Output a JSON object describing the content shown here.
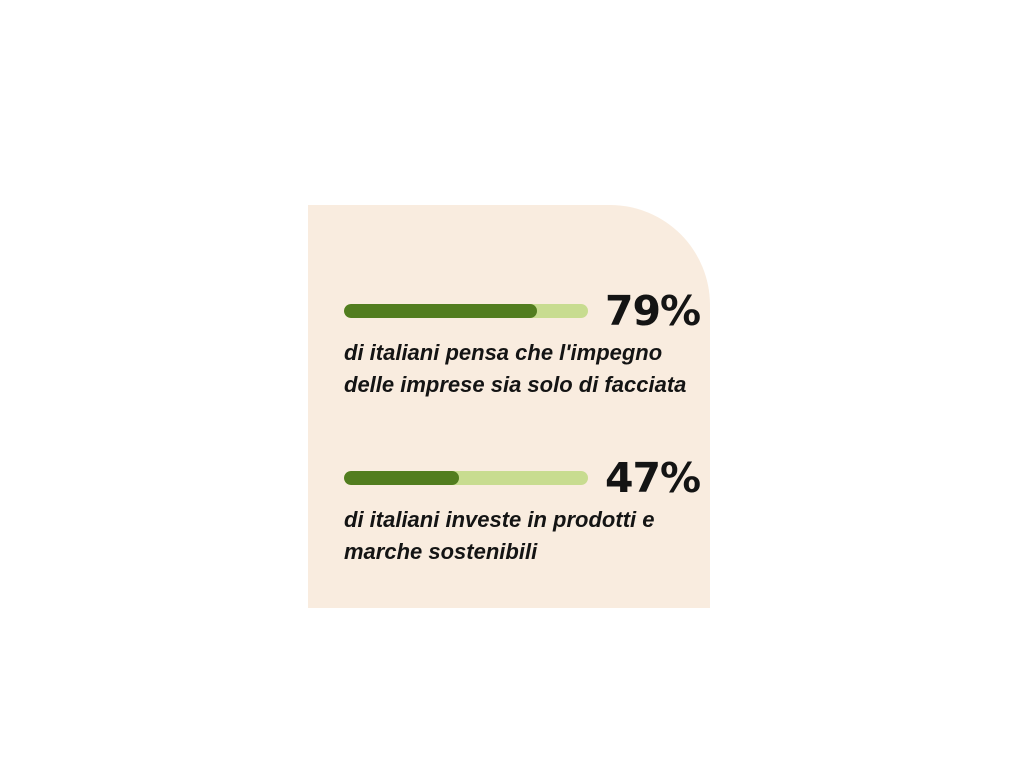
{
  "colors": {
    "page_bg": "#ffffff",
    "panel_bg": "#f9ecdf",
    "bar_fill": "#527d1f",
    "bar_track": "#c8dc90",
    "text": "#141414"
  },
  "stats": [
    {
      "percent_label": "79%",
      "value": 79,
      "lines": [
        "di italiani pensa che l'impegno",
        "delle imprese sia solo di facciata"
      ]
    },
    {
      "percent_label": "47%",
      "value": 47,
      "lines": [
        "di italiani investe in prodotti e",
        "marche sostenibili"
      ]
    }
  ],
  "chart_data": {
    "type": "bar",
    "orientation": "horizontal",
    "categories": [
      "di italiani pensa che l'impegno delle imprese sia solo di facciata",
      "di italiani investe in prodotti e marche sostenibili"
    ],
    "values": [
      79,
      47
    ],
    "value_labels": [
      "79%",
      "47%"
    ],
    "title": "",
    "xlabel": "",
    "ylabel": "",
    "xlim": [
      0,
      100
    ],
    "grid": false,
    "legend": false,
    "bar_color": "#527d1f",
    "track_color": "#c8dc90"
  }
}
